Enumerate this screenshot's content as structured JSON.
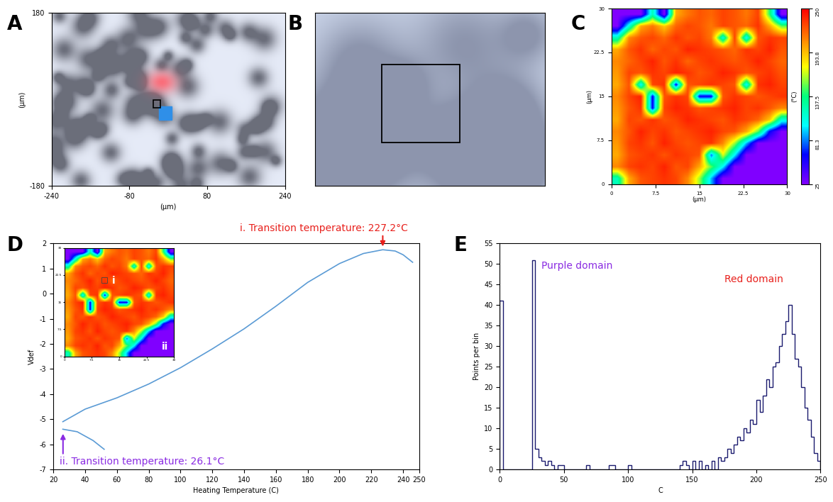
{
  "chart_data": [
    {
      "type": "image",
      "panel_label": "A",
      "xlabel": "(μm)",
      "ylabel": "(μm)",
      "xlim": [
        -240,
        240
      ],
      "ylim": [
        -180,
        180
      ],
      "xticks": [
        -240,
        -80,
        80,
        240
      ],
      "yticks": [
        -180,
        180
      ]
    },
    {
      "type": "image",
      "panel_label": "B",
      "tick_labels": false
    },
    {
      "type": "heatmap",
      "panel_label": "C",
      "xlabel": "(μm)",
      "ylabel": "(μm)",
      "xlim": [
        0,
        30
      ],
      "ylim": [
        0,
        30
      ],
      "xticks": [
        0,
        7.5,
        15,
        22.5,
        30
      ],
      "yticks": [
        0,
        7.5,
        15,
        22.5,
        30
      ],
      "cells": [
        [
          25,
          25,
          25,
          120,
          25,
          200,
          215,
          225,
          220,
          230,
          225,
          215,
          230,
          140,
          25
        ],
        [
          25,
          110,
          200,
          215,
          190,
          220,
          230,
          225,
          215,
          230,
          225,
          220,
          235,
          200,
          150
        ],
        [
          120,
          210,
          225,
          230,
          220,
          235,
          225,
          230,
          215,
          110,
          230,
          100,
          225,
          235,
          230
        ],
        [
          200,
          225,
          235,
          220,
          230,
          225,
          240,
          235,
          230,
          225,
          220,
          235,
          230,
          240,
          225
        ],
        [
          210,
          220,
          230,
          240,
          225,
          235,
          220,
          230,
          235,
          230,
          225,
          230,
          240,
          230,
          220
        ],
        [
          205,
          230,
          225,
          235,
          230,
          240,
          235,
          225,
          230,
          240,
          235,
          225,
          230,
          235,
          225
        ],
        [
          200,
          225,
          100,
          230,
          235,
          60,
          225,
          230,
          235,
          230,
          225,
          100,
          235,
          240,
          230
        ],
        [
          210,
          230,
          240,
          60,
          225,
          235,
          230,
          60,
          60,
          225,
          235,
          230,
          225,
          230,
          235
        ],
        [
          205,
          225,
          235,
          60,
          230,
          240,
          235,
          225,
          230,
          235,
          240,
          230,
          235,
          225,
          210
        ],
        [
          200,
          230,
          225,
          235,
          225,
          230,
          240,
          235,
          230,
          225,
          235,
          230,
          220,
          190,
          110
        ],
        [
          210,
          225,
          240,
          230,
          235,
          225,
          230,
          235,
          240,
          230,
          225,
          200,
          150,
          60,
          25
        ],
        [
          205,
          230,
          235,
          225,
          240,
          230,
          225,
          230,
          235,
          210,
          160,
          90,
          25,
          25,
          25
        ],
        [
          200,
          225,
          230,
          235,
          225,
          235,
          230,
          225,
          80,
          170,
          100,
          25,
          25,
          25,
          25
        ],
        [
          210,
          230,
          235,
          230,
          240,
          225,
          230,
          200,
          150,
          100,
          25,
          25,
          25,
          25,
          25
        ],
        [
          120,
          200,
          225,
          230,
          235,
          230,
          210,
          160,
          90,
          25,
          25,
          25,
          25,
          25,
          25
        ]
      ],
      "colorbar": {
        "label": "(°C)",
        "range": [
          25,
          250
        ],
        "ticks": [
          25,
          81.3,
          137.5,
          193.8,
          250
        ]
      }
    },
    {
      "type": "line",
      "panel_label": "D",
      "xlabel": "Heating Temperature (C)",
      "ylabel": "Vdef",
      "xlim": [
        20,
        250
      ],
      "ylim": [
        -7,
        2
      ],
      "xticks": [
        20,
        40,
        60,
        80,
        100,
        120,
        140,
        160,
        180,
        200,
        220,
        240,
        250
      ],
      "yticks": [
        -7,
        -6,
        -5,
        -4,
        -3,
        -2,
        -1,
        0,
        1,
        2
      ],
      "series": [
        {
          "color": "#5b9bd5",
          "x": [
            26,
            40,
            60,
            80,
            100,
            120,
            140,
            160,
            180,
            200,
            215,
            227.2,
            235,
            240,
            246
          ],
          "values": [
            -5.1,
            -4.6,
            -4.15,
            -3.6,
            -2.95,
            -2.2,
            -1.4,
            -0.5,
            0.45,
            1.2,
            1.6,
            1.75,
            1.7,
            1.55,
            1.25
          ]
        },
        {
          "color": "#5b9bd5",
          "x": [
            26,
            35,
            45,
            52
          ],
          "values": [
            -5.4,
            -5.5,
            -5.85,
            -6.2
          ]
        }
      ],
      "annotations": [
        {
          "text": "i. Transition temperature: 227.2°C",
          "x": 227.2,
          "y": 1.75,
          "color": "#e8201c"
        },
        {
          "text": "ii. Transition temperature: 26.1°C",
          "x": 26.1,
          "y": -5.45,
          "color": "#8a2be2"
        }
      ],
      "inset": {
        "labels": [
          "i",
          "ii"
        ]
      }
    },
    {
      "type": "histogram",
      "panel_label": "E",
      "xlabel": "C",
      "ylabel": "Points per bin",
      "xlim": [
        0,
        250
      ],
      "ylim": [
        0,
        55
      ],
      "xticks": [
        0,
        50,
        100,
        150,
        200,
        250
      ],
      "yticks": [
        0,
        5,
        10,
        15,
        20,
        25,
        30,
        35,
        40,
        45,
        50,
        55
      ],
      "color": "#1a1a6e",
      "bins": [
        0,
        2.5,
        5,
        7.5,
        10,
        12.5,
        15,
        17.5,
        20,
        22.5,
        25,
        27.5,
        30,
        32.5,
        35,
        37.5,
        40,
        42.5,
        45,
        47.5,
        50,
        52.5,
        55,
        57.5,
        60,
        62.5,
        65,
        67.5,
        70,
        72.5,
        75,
        77.5,
        80,
        82.5,
        85,
        87.5,
        90,
        92.5,
        95,
        97.5,
        100,
        102.5,
        105,
        107.5,
        110,
        112.5,
        115,
        117.5,
        120,
        122.5,
        125,
        127.5,
        130,
        132.5,
        135,
        137.5,
        140,
        142.5,
        145,
        147.5,
        150,
        152.5,
        155,
        157.5,
        160,
        162.5,
        165,
        167.5,
        170,
        172.5,
        175,
        177.5,
        180,
        182.5,
        185,
        187.5,
        190,
        192.5,
        195,
        197.5,
        200,
        202.5,
        205,
        207.5,
        210,
        212.5,
        215,
        217.5,
        220,
        222.5,
        225,
        227.5,
        230,
        232.5,
        235,
        237.5,
        240,
        242.5,
        245,
        247.5,
        250
      ],
      "counts": [
        41,
        0,
        0,
        0,
        0,
        0,
        0,
        0,
        0,
        0,
        51,
        5,
        3,
        2,
        1,
        2,
        1,
        0,
        1,
        1,
        0,
        0,
        0,
        0,
        0,
        0,
        0,
        1,
        0,
        0,
        0,
        0,
        0,
        0,
        1,
        1,
        0,
        0,
        0,
        0,
        1,
        0,
        0,
        0,
        0,
        0,
        0,
        0,
        0,
        0,
        0,
        0,
        0,
        0,
        0,
        0,
        1,
        2,
        1,
        0,
        2,
        0,
        2,
        0,
        1,
        0,
        2,
        0,
        3,
        2,
        3,
        5,
        4,
        6,
        8,
        7,
        10,
        9,
        12,
        11,
        17,
        14,
        18,
        22,
        20,
        25,
        26,
        30,
        33,
        36,
        40,
        33,
        27,
        25,
        20,
        15,
        12,
        8,
        4,
        2
      ],
      "annotations": [
        {
          "text": "Purple domain",
          "color": "#8a2be2"
        },
        {
          "text": "Red domain",
          "color": "#e8201c"
        }
      ]
    }
  ]
}
